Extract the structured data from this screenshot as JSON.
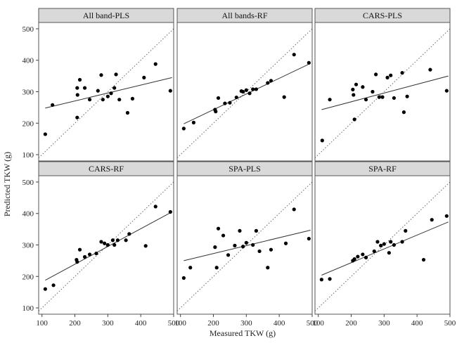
{
  "figure": {
    "xlabel": "Measured TKW (g)",
    "ylabel": "Predicted TKW (g)"
  },
  "chart_data": {
    "type": "scatter",
    "layout": "facet-grid-2x3",
    "xlim": [
      90,
      500
    ],
    "ylim": [
      80,
      520
    ],
    "xticks": [
      100,
      200,
      300,
      400,
      500
    ],
    "yticks": [
      100,
      200,
      300,
      400,
      500
    ],
    "grid": false,
    "reference_line": "1:1 dotted",
    "colors": {
      "points": "#000000",
      "fit_line": "#333333",
      "strip_bg": "#d9d9d9",
      "ref_line": "#666666"
    },
    "panels": [
      {
        "title": "All band-PLS",
        "fit": [
          [
            110,
            248
          ],
          [
            495,
            345
          ]
        ],
        "points": [
          [
            110,
            165
          ],
          [
            132,
            258
          ],
          [
            207,
            218
          ],
          [
            207,
            312
          ],
          [
            208,
            290
          ],
          [
            215,
            338
          ],
          [
            230,
            312
          ],
          [
            245,
            275
          ],
          [
            270,
            303
          ],
          [
            280,
            353
          ],
          [
            285,
            275
          ],
          [
            300,
            285
          ],
          [
            310,
            295
          ],
          [
            320,
            312
          ],
          [
            325,
            355
          ],
          [
            335,
            275
          ],
          [
            360,
            233
          ],
          [
            375,
            278
          ],
          [
            410,
            345
          ],
          [
            445,
            388
          ],
          [
            490,
            303
          ]
        ]
      },
      {
        "title": "All bands-RF",
        "fit": [
          [
            110,
            198
          ],
          [
            495,
            390
          ]
        ],
        "points": [
          [
            110,
            183
          ],
          [
            140,
            202
          ],
          [
            205,
            243
          ],
          [
            207,
            237
          ],
          [
            215,
            280
          ],
          [
            235,
            263
          ],
          [
            250,
            265
          ],
          [
            270,
            282
          ],
          [
            285,
            302
          ],
          [
            290,
            300
          ],
          [
            300,
            305
          ],
          [
            310,
            295
          ],
          [
            320,
            308
          ],
          [
            330,
            308
          ],
          [
            365,
            328
          ],
          [
            375,
            335
          ],
          [
            415,
            283
          ],
          [
            445,
            418
          ],
          [
            490,
            392
          ]
        ]
      },
      {
        "title": "CARS-PLS",
        "fit": [
          [
            110,
            243
          ],
          [
            495,
            350
          ]
        ],
        "points": [
          [
            112,
            145
          ],
          [
            135,
            275
          ],
          [
            205,
            307
          ],
          [
            207,
            290
          ],
          [
            210,
            212
          ],
          [
            215,
            323
          ],
          [
            235,
            315
          ],
          [
            245,
            275
          ],
          [
            265,
            300
          ],
          [
            275,
            355
          ],
          [
            285,
            283
          ],
          [
            295,
            283
          ],
          [
            310,
            345
          ],
          [
            320,
            352
          ],
          [
            330,
            280
          ],
          [
            355,
            360
          ],
          [
            360,
            235
          ],
          [
            370,
            285
          ],
          [
            440,
            370
          ],
          [
            490,
            303
          ]
        ]
      },
      {
        "title": "CARS-RF",
        "fit": [
          [
            110,
            188
          ],
          [
            495,
            405
          ]
        ],
        "points": [
          [
            110,
            160
          ],
          [
            135,
            172
          ],
          [
            205,
            253
          ],
          [
            207,
            246
          ],
          [
            215,
            285
          ],
          [
            230,
            262
          ],
          [
            245,
            270
          ],
          [
            265,
            273
          ],
          [
            280,
            310
          ],
          [
            290,
            305
          ],
          [
            300,
            300
          ],
          [
            315,
            315
          ],
          [
            320,
            300
          ],
          [
            330,
            315
          ],
          [
            355,
            315
          ],
          [
            365,
            335
          ],
          [
            415,
            297
          ],
          [
            445,
            422
          ],
          [
            490,
            405
          ]
        ]
      },
      {
        "title": "SPA-PLS",
        "fit": [
          [
            110,
            250
          ],
          [
            495,
            347
          ]
        ],
        "points": [
          [
            110,
            195
          ],
          [
            130,
            228
          ],
          [
            205,
            293
          ],
          [
            210,
            228
          ],
          [
            215,
            352
          ],
          [
            230,
            330
          ],
          [
            245,
            268
          ],
          [
            265,
            298
          ],
          [
            280,
            345
          ],
          [
            290,
            295
          ],
          [
            300,
            307
          ],
          [
            320,
            300
          ],
          [
            330,
            345
          ],
          [
            340,
            280
          ],
          [
            365,
            228
          ],
          [
            375,
            285
          ],
          [
            420,
            305
          ],
          [
            445,
            413
          ],
          [
            490,
            320
          ]
        ]
      },
      {
        "title": "SPA-RF",
        "fit": [
          [
            110,
            204
          ],
          [
            495,
            373
          ]
        ],
        "points": [
          [
            110,
            190
          ],
          [
            135,
            192
          ],
          [
            205,
            250
          ],
          [
            210,
            255
          ],
          [
            220,
            263
          ],
          [
            235,
            270
          ],
          [
            245,
            260
          ],
          [
            270,
            280
          ],
          [
            280,
            310
          ],
          [
            290,
            298
          ],
          [
            300,
            303
          ],
          [
            315,
            275
          ],
          [
            320,
            310
          ],
          [
            330,
            300
          ],
          [
            355,
            310
          ],
          [
            365,
            345
          ],
          [
            420,
            253
          ],
          [
            445,
            380
          ],
          [
            490,
            392
          ]
        ]
      }
    ]
  }
}
